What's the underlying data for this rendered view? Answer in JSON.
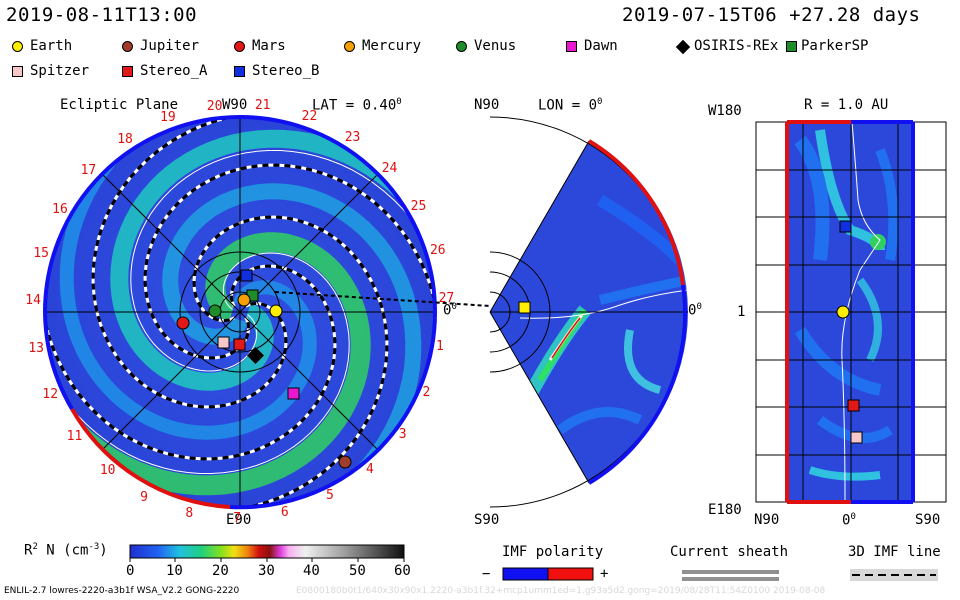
{
  "header": {
    "left_timestamp": "2019-08-11T13:00",
    "right_timestamp": "2019-07-15T06 +27.28 days"
  },
  "legend": [
    {
      "name": "Earth",
      "shape": "circle",
      "color": "#ffee00"
    },
    {
      "name": "Jupiter",
      "shape": "circle",
      "color": "#a03c2a"
    },
    {
      "name": "Mars",
      "shape": "circle",
      "color": "#e01818"
    },
    {
      "name": "Mercury",
      "shape": "circle",
      "color": "#f5a000"
    },
    {
      "name": "Venus",
      "shape": "circle",
      "color": "#1e8c28"
    },
    {
      "name": "Dawn",
      "shape": "square",
      "color": "#e818d0"
    },
    {
      "name": "OSIRIS-REx",
      "shape": "diamond",
      "color": "#000000"
    },
    {
      "name": "ParkerSP",
      "shape": "square",
      "color": "#1e8c28"
    },
    {
      "name": "Spitzer",
      "shape": "square",
      "color": "#f8c8c8"
    },
    {
      "name": "Stereo_A",
      "shape": "square",
      "color": "#e01818"
    },
    {
      "name": "Stereo_B",
      "shape": "square",
      "color": "#1030e0"
    }
  ],
  "ecliptic_panel": {
    "title": "Ecliptic Plane",
    "top_label": "W90",
    "lat_label": "LAT = 0.40",
    "lat_superscript": "0",
    "right_label": "0",
    "right_superscript": "0",
    "bottom_label": "E90",
    "rim_numbers": [
      "20",
      "21",
      "22",
      "23",
      "24",
      "25",
      "26",
      "27",
      "1",
      "2",
      "3",
      "4",
      "5",
      "6",
      "7",
      "8",
      "9",
      "10",
      "11",
      "12",
      "13",
      "14",
      "15",
      "16",
      "17",
      "18",
      "19"
    ]
  },
  "meridional_panel": {
    "top_label": "N90",
    "lon_label": "LON = 0",
    "lon_superscript": "0",
    "right_label": "0",
    "right_superscript": "0",
    "bottom_label": "S90"
  },
  "radius_panel": {
    "title": "R = 1.0 AU",
    "top_left_label": "W180",
    "mid_left_label": "1",
    "bottom_left_label": "E180",
    "bottom_labels": [
      "N90",
      "0",
      "S90"
    ],
    "bottom_mid_superscript": "0"
  },
  "colorbar": {
    "label": "R",
    "label_sup": "2",
    "label_rest": " N (cm",
    "label_rest_sup": "-3",
    "label_close": ")",
    "ticks": [
      "0",
      "10",
      "20",
      "30",
      "40",
      "50",
      "60"
    ]
  },
  "imf_polarity": {
    "title": "IMF polarity",
    "minus": "−",
    "plus": "+",
    "neg_color": "#1010f0",
    "pos_color": "#f01010"
  },
  "current_sheath": {
    "title": "Current sheath"
  },
  "imf_line": {
    "title": "3D IMF line"
  },
  "footer": {
    "left": "ENLIL-2.7 lowres-2220-a3b1f WSA_V2.2 GONG-2220",
    "faint": "E0800180b0t1/640x30x90x1.2220-a3b1f.32+mcp1umm1ed=1.g93a5d2.gong=2019/08/28T11:54Z0100   2019-08-08"
  }
}
